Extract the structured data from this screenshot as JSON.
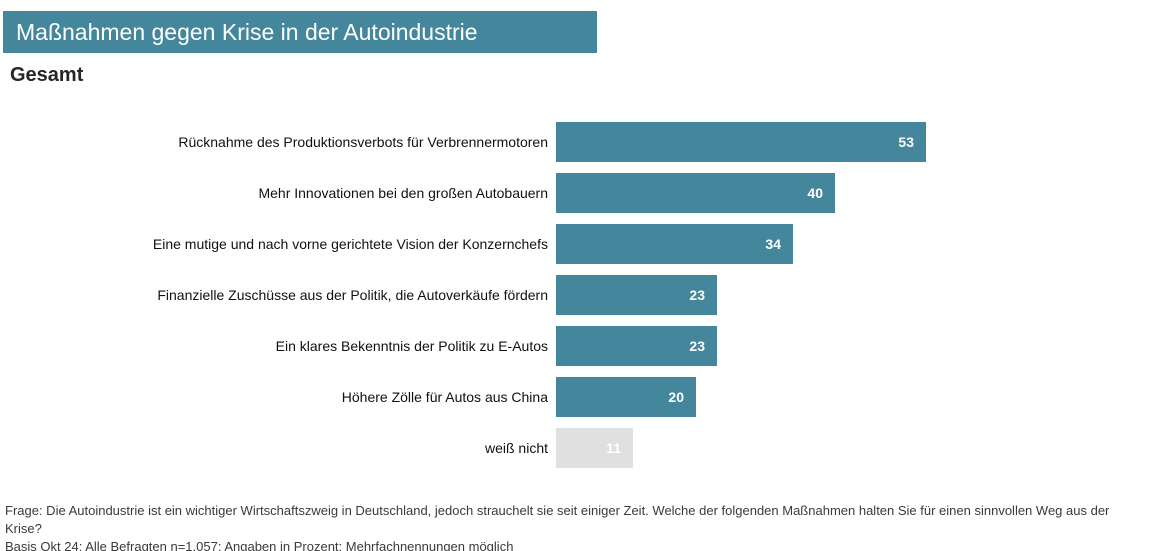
{
  "header": {
    "title": "Maßnahmen gegen Krise in der Autoindustrie",
    "subtitle": "Gesamt",
    "title_bg_color": "#44869C",
    "title_text_color": "#FFFFFF"
  },
  "chart_data": {
    "type": "bar",
    "orientation": "horizontal",
    "title": "Maßnahmen gegen Krise in der Autoindustrie",
    "subtitle": "Gesamt",
    "value_unit": "percent",
    "xlim": [
      0,
      57
    ],
    "grid": false,
    "legend": false,
    "categories": [
      "Rücknahme des Produktionsverbots für Verbrennermotoren",
      "Mehr Innovationen bei den großen Autobauern",
      "Eine mutige und nach vorne gerichtete Vision der Konzernchefs",
      "Finanzielle Zuschüsse aus der Politik, die Autoverkäufe fördern",
      "Ein klares Bekenntnis der Politik zu E-Autos",
      "Höhere Zölle für Autos aus China",
      "weiß nicht"
    ],
    "values": [
      53,
      40,
      34,
      23,
      23,
      20,
      11
    ],
    "bar_color": "#44869C",
    "muted_bar_color": "#E0E0E0",
    "muted_categories": [
      "weiß nicht"
    ],
    "value_label_color": "#FFFFFF"
  },
  "footer": {
    "question": "Frage: Die Autoindustrie ist ein wichtiger Wirtschaftszweig in Deutschland, jedoch strauchelt sie seit einiger Zeit. Welche der folgenden Maßnahmen halten Sie für einen sinnvollen Weg aus der Krise?",
    "basis": "Basis Okt 24: Alle Befragten n=1.057; Angaben in Prozent; Mehrfachnennungen möglich"
  }
}
